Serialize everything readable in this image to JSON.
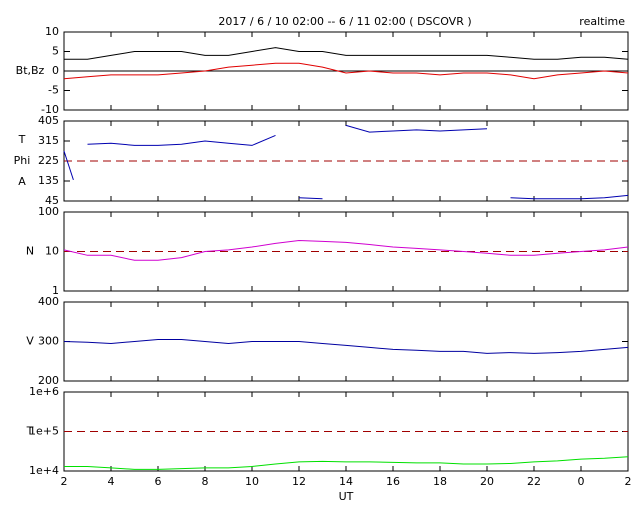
{
  "chart_data": [
    {
      "type": "line",
      "title": "2017 / 6 / 10  02:00 --  6 / 11  02:00 ( DSCOVR )",
      "subtitle": "realtime",
      "ylabel": [
        "Bt,Bz"
      ],
      "xlim": [
        2,
        26
      ],
      "ylim": [
        -10,
        10
      ],
      "yticks": [
        10,
        5,
        0,
        -5,
        -10
      ],
      "log": false,
      "reference_line": {
        "value": 0,
        "color": "#000000",
        "dashed": false
      },
      "x": [
        2,
        3,
        4,
        5,
        6,
        7,
        8,
        9,
        10,
        11,
        12,
        13,
        14,
        15,
        16,
        17,
        18,
        19,
        20,
        21,
        22,
        23,
        24,
        25,
        26
      ],
      "series": [
        {
          "name": "Bt",
          "color": "#000000",
          "values": [
            3,
            3,
            4,
            5,
            5,
            5,
            4,
            4,
            5,
            6,
            5,
            5,
            4,
            4,
            4,
            4,
            4,
            4,
            4,
            3.5,
            3,
            3,
            3.5,
            3.5,
            3
          ]
        },
        {
          "name": "Bz",
          "color": "#e00000",
          "values": [
            -2,
            -1.5,
            -1,
            -1,
            -1,
            -0.5,
            0,
            1,
            1.5,
            2,
            2,
            1,
            -0.5,
            0,
            -0.5,
            -0.5,
            -1,
            -0.5,
            -0.5,
            -1,
            -2,
            -1,
            -0.5,
            0,
            -0.5
          ]
        }
      ]
    },
    {
      "type": "line",
      "ylabel": [
        "T",
        "Phi",
        "A"
      ],
      "xlim": [
        2,
        26
      ],
      "ylim": [
        45,
        405
      ],
      "yticks": [
        405,
        315,
        225,
        135,
        45
      ],
      "log": false,
      "reference_line": {
        "value": 225,
        "color": "#a00000",
        "dashed": true
      },
      "x": [
        2,
        2.4,
        2.5,
        3,
        4,
        5,
        6,
        7,
        8,
        9,
        10,
        11,
        11.5,
        12,
        13,
        13.5,
        14,
        15,
        16,
        17,
        18,
        19,
        20,
        20.5,
        21,
        22,
        23,
        24,
        25,
        26
      ],
      "series": [
        {
          "name": "Phi",
          "color": "#0000b0",
          "values": [
            270,
            140,
            null,
            300,
            305,
            295,
            295,
            300,
            315,
            305,
            295,
            340,
            null,
            60,
            55,
            null,
            385,
            355,
            360,
            365,
            360,
            365,
            370,
            null,
            60,
            55,
            55,
            55,
            60,
            70
          ]
        }
      ]
    },
    {
      "type": "line",
      "ylabel": [
        "N"
      ],
      "xlim": [
        2,
        26
      ],
      "ylim": [
        1,
        100
      ],
      "yticks": [
        100,
        10,
        1
      ],
      "log": true,
      "reference_line": {
        "value": 10,
        "color": "#a00000",
        "dashed": true
      },
      "x": [
        2,
        3,
        4,
        5,
        6,
        7,
        8,
        9,
        10,
        11,
        12,
        13,
        14,
        15,
        16,
        17,
        18,
        19,
        20,
        21,
        22,
        23,
        24,
        25,
        26
      ],
      "series": [
        {
          "name": "N",
          "color": "#d000d0",
          "values": [
            11,
            8,
            8,
            6,
            6,
            7,
            10,
            11,
            13,
            16,
            19,
            18,
            17,
            15,
            13,
            12,
            11,
            10,
            9,
            8,
            8,
            9,
            10,
            11,
            13
          ]
        }
      ]
    },
    {
      "type": "line",
      "ylabel": [
        "V"
      ],
      "xlim": [
        2,
        26
      ],
      "ylim": [
        200,
        400
      ],
      "yticks": [
        400,
        300,
        200
      ],
      "log": false,
      "x": [
        2,
        3,
        4,
        5,
        6,
        7,
        8,
        9,
        10,
        11,
        12,
        13,
        14,
        15,
        16,
        17,
        18,
        19,
        20,
        21,
        22,
        23,
        24,
        25,
        26
      ],
      "series": [
        {
          "name": "V",
          "color": "#0000a0",
          "values": [
            300,
            298,
            295,
            300,
            305,
            305,
            300,
            295,
            300,
            300,
            300,
            295,
            290,
            285,
            280,
            278,
            275,
            275,
            270,
            272,
            270,
            272,
            275,
            280,
            285
          ]
        }
      ]
    },
    {
      "type": "line",
      "ylabel": [
        "T"
      ],
      "xlabel": "UT",
      "xlim": [
        2,
        26
      ],
      "ylim": [
        10000,
        1000000
      ],
      "yticks": [
        {
          "value": 1000000,
          "label": "1e+6"
        },
        {
          "value": 100000,
          "label": "1e+5"
        },
        {
          "value": 10000,
          "label": "1e+4"
        }
      ],
      "log": true,
      "reference_line": {
        "value": 100000,
        "color": "#a00000",
        "dashed": true
      },
      "xticks": [
        2,
        4,
        6,
        8,
        10,
        12,
        14,
        16,
        18,
        20,
        22,
        {
          "value": 24,
          "label": "0"
        },
        {
          "value": 26,
          "label": "2"
        }
      ],
      "x": [
        2,
        3,
        4,
        5,
        6,
        7,
        8,
        9,
        10,
        11,
        12,
        13,
        14,
        15,
        16,
        17,
        18,
        19,
        20,
        21,
        22,
        23,
        24,
        25,
        26
      ],
      "series": [
        {
          "name": "T",
          "color": "#00e000",
          "values": [
            13000,
            13000,
            12000,
            11000,
            11000,
            11500,
            12000,
            12000,
            13000,
            15000,
            17000,
            17500,
            17000,
            17000,
            16500,
            16000,
            16000,
            15000,
            15000,
            15500,
            17000,
            18000,
            20000,
            21000,
            23000
          ]
        }
      ]
    }
  ]
}
